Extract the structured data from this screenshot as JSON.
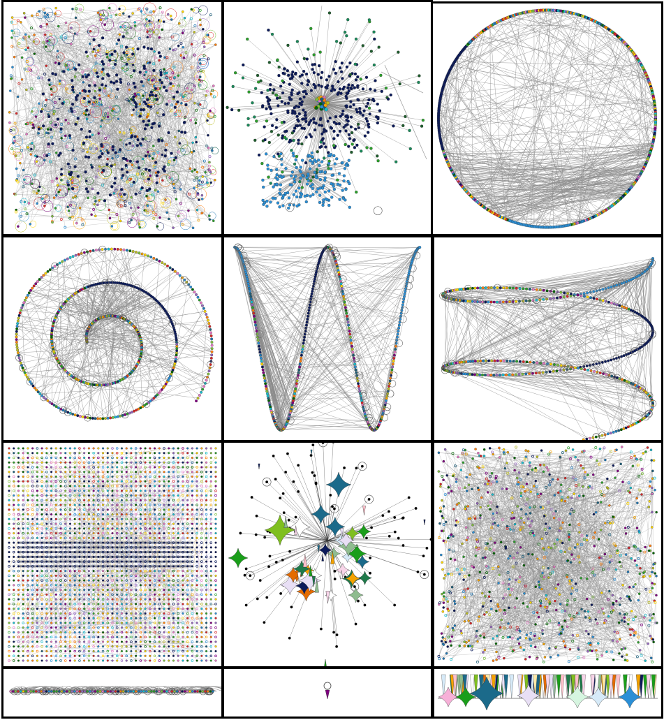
{
  "colors": {
    "edge": "#8c8c8c",
    "navy": "#0b1a5a",
    "blue": "#2a8fd6",
    "node_palette": [
      "#1f77b4",
      "#2ca02c",
      "#d62728",
      "#9467bd",
      "#ff7f0e",
      "#17becf",
      "#e377c2",
      "#bcbd22",
      "#0b1a5a",
      "#2a8fd6",
      "#7fbf3f",
      "#f4a300",
      "#006400",
      "#800080",
      "#ffd700",
      "#1b5e7a"
    ],
    "glyph_palette": [
      "#7fbf1f",
      "#1b6a8a",
      "#ffe9a8",
      "#f7d4e8",
      "#e8dff5",
      "#d6eaf8",
      "#f4a300",
      "#e46b00",
      "#1a9e1a",
      "#0b1a5a",
      "#1f7a4a",
      "#ffffff",
      "#ffc0cb",
      "#8fbc8f"
    ]
  },
  "panels": [
    {
      "id": "p0",
      "layout": "force-directed-dense"
    },
    {
      "id": "p1",
      "layout": "force-directed-clusters"
    },
    {
      "id": "p2",
      "layout": "circular"
    },
    {
      "id": "p3",
      "layout": "spiral"
    },
    {
      "id": "p4",
      "layout": "sine-wave"
    },
    {
      "id": "p5",
      "layout": "3d-helix"
    },
    {
      "id": "p6",
      "layout": "grid"
    },
    {
      "id": "p7",
      "layout": "glyph-force"
    },
    {
      "id": "p8",
      "layout": "random"
    },
    {
      "id": "p9",
      "layout": "linear"
    },
    {
      "id": "p10",
      "layout": "single-node"
    },
    {
      "id": "p11",
      "layout": "glyph-row"
    }
  ]
}
